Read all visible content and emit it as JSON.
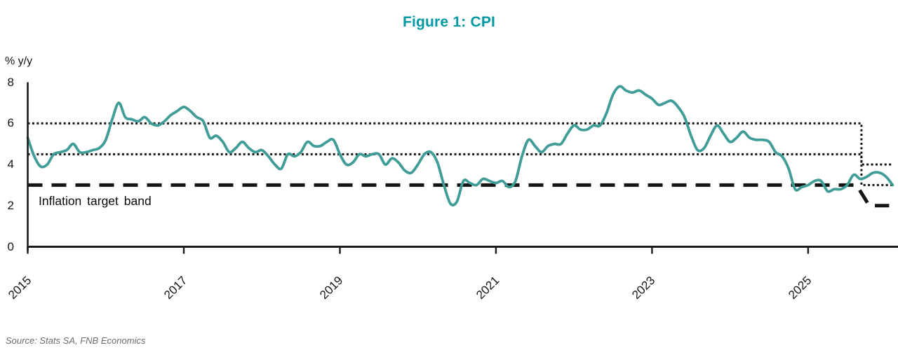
{
  "figure": {
    "source": "Source: Stats SA, FNB Economics"
  },
  "chart_data": {
    "type": "line",
    "title": "Figure 1: CPI",
    "ylabel": "% y/y",
    "ylim": [
      0,
      8
    ],
    "yticks": [
      0,
      2,
      4,
      6,
      8
    ],
    "xtick_labels": [
      "2015",
      "2017",
      "2019",
      "2021",
      "2023",
      "2025"
    ],
    "xtick_interval_months": 24,
    "x_start_month": "2014-12",
    "x_end_month": "2026-01",
    "frequency": "monthly",
    "grid": "off",
    "legend": "none",
    "series": [
      {
        "name": "CPI % y/y",
        "color": "#3f9c96",
        "values": [
          5.3,
          4.4,
          3.9,
          4.0,
          4.5,
          4.6,
          4.7,
          5.0,
          4.6,
          4.6,
          4.7,
          4.8,
          5.2,
          6.2,
          7.0,
          6.3,
          6.2,
          6.1,
          6.3,
          6.0,
          5.9,
          6.1,
          6.4,
          6.6,
          6.8,
          6.6,
          6.3,
          6.1,
          5.3,
          5.4,
          5.1,
          4.6,
          4.8,
          5.1,
          4.8,
          4.6,
          4.7,
          4.4,
          4.0,
          3.8,
          4.5,
          4.4,
          4.6,
          5.1,
          4.9,
          4.9,
          5.1,
          5.2,
          4.5,
          4.0,
          4.1,
          4.5,
          4.4,
          4.5,
          4.5,
          4.0,
          4.3,
          4.1,
          3.7,
          3.6,
          4.0,
          4.5,
          4.6,
          4.1,
          3.0,
          2.1,
          2.2,
          3.2,
          3.1,
          3.0,
          3.3,
          3.2,
          3.1,
          3.2,
          2.9,
          3.2,
          4.4,
          5.2,
          4.9,
          4.6,
          4.9,
          5.0,
          5.0,
          5.5,
          5.9,
          5.7,
          5.7,
          5.9,
          5.9,
          6.5,
          7.4,
          7.8,
          7.6,
          7.5,
          7.6,
          7.4,
          7.2,
          6.9,
          7.0,
          7.1,
          6.8,
          6.3,
          5.4,
          4.7,
          4.8,
          5.4,
          5.9,
          5.5,
          5.1,
          5.3,
          5.6,
          5.3,
          5.2,
          5.2,
          5.1,
          4.6,
          4.4,
          3.8,
          2.8,
          2.9,
          3.0,
          3.2,
          3.2,
          2.7,
          2.8,
          2.8,
          3.0,
          3.5,
          3.3,
          3.4,
          3.6,
          3.6,
          3.4,
          3.0
        ]
      }
    ],
    "target_band": {
      "label": "Inflation target band",
      "old": {
        "upper": 6,
        "midpoint": 4.5,
        "lower": 3
      },
      "new": {
        "upper": 4,
        "midpoint": 3,
        "lower": 2
      },
      "change_month_index": 128.2,
      "upper_and_midpoint_style": "dotted",
      "lower_style": "dashed"
    },
    "colors": {
      "title": "#0099a3",
      "line": "#3f9c96",
      "band_lines": "#141414",
      "axis": "#1a1a1a"
    }
  }
}
